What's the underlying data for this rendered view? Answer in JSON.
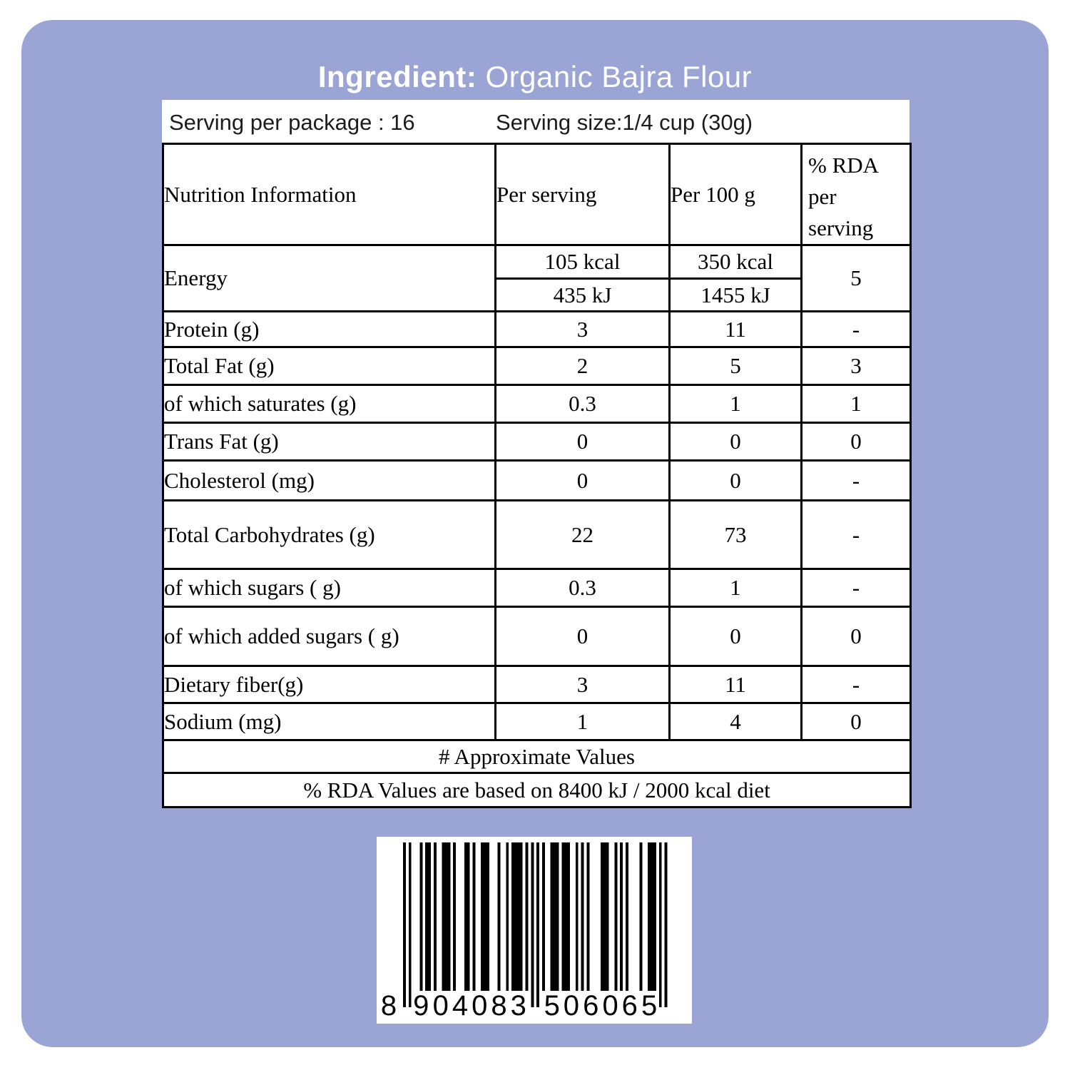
{
  "header": {
    "title_bold": "Ingredient:",
    "title_rest": " Organic Bajra Flour"
  },
  "serving": {
    "per_package": "Serving per package : 16",
    "size": "Serving size:1/4 cup (30g)"
  },
  "table": {
    "columns": [
      "Nutrition Information",
      "Per serving",
      "Per 100 g",
      "% RDA per serving"
    ],
    "energy": {
      "label": "Energy",
      "per_serving": [
        "105 kcal",
        "435 kJ"
      ],
      "per_100g": [
        "350 kcal",
        "1455 kJ"
      ],
      "rda": "5"
    },
    "rows": [
      {
        "label": "Protein (g)",
        "per_serving": "3",
        "per_100g": "11",
        "rda": "-"
      },
      {
        "label": "Total Fat (g)",
        "per_serving": "2",
        "per_100g": "5",
        "rda": "3"
      },
      {
        "label": "of which saturates (g)",
        "per_serving": "0.3",
        "per_100g": "1",
        "rda": "1"
      },
      {
        "label": "Trans Fat (g)",
        "per_serving": "0",
        "per_100g": "0",
        "rda": "0"
      },
      {
        "label": "Cholesterol (mg)",
        "per_serving": "0",
        "per_100g": "0",
        "rda": "-"
      },
      {
        "label": "Total Carbohydrates (g)",
        "per_serving": "22",
        "per_100g": "73",
        "rda": "-"
      },
      {
        "label": "of which sugars ( g)",
        "per_serving": "0.3",
        "per_100g": "1",
        "rda": "-"
      },
      {
        "label": "of which added sugars ( g)",
        "per_serving": "0",
        "per_100g": "0",
        "rda": "0"
      },
      {
        "label": "Dietary fiber(g)",
        "per_serving": "3",
        "per_100g": "11",
        "rda": "-"
      },
      {
        "label": "Sodium  (mg)",
        "per_serving": "1",
        "per_100g": "4",
        "rda": "0"
      }
    ],
    "notes": [
      "# Approximate Values",
      "% RDA Values are based on 8400 kJ / 2000 kcal diet"
    ]
  },
  "barcode": {
    "value": "8904083506065"
  },
  "colors": {
    "background": "#9aa5d6",
    "panel": "#ffffff",
    "title_text": "#ffffff",
    "table_text": "#000000",
    "bar_color": "#000000"
  }
}
